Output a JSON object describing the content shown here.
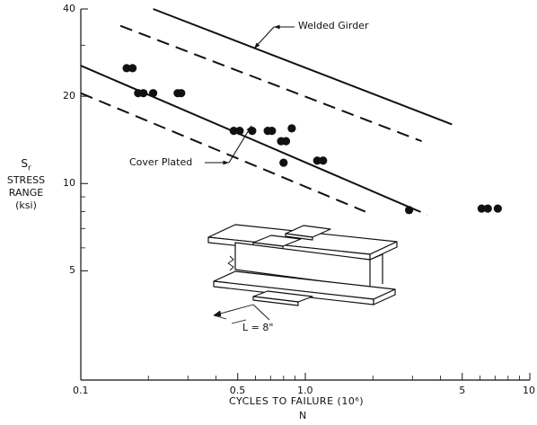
{
  "chart_data": {
    "type": "scatter",
    "xscale": "log",
    "yscale": "log",
    "xlim": [
      0.1,
      10
    ],
    "ylim": [
      2.1,
      40
    ],
    "x_ticks": [
      {
        "v": 0.1,
        "label": "0.1"
      },
      {
        "v": 0.5,
        "label": "0.5"
      },
      {
        "v": 1.0,
        "label": "1.0"
      },
      {
        "v": 5,
        "label": "5"
      },
      {
        "v": 10,
        "label": "10"
      }
    ],
    "x_minor_ticks": [
      0.2,
      0.3,
      0.4,
      0.6,
      0.7,
      0.8,
      0.9,
      2,
      3,
      4,
      6,
      7,
      8,
      9
    ],
    "y_ticks": [
      {
        "v": 5,
        "label": "5"
      },
      {
        "v": 10,
        "label": "10"
      },
      {
        "v": 20,
        "label": "20"
      },
      {
        "v": 40,
        "label": "40"
      }
    ],
    "y_minor_ticks": [
      6,
      7,
      8,
      9,
      30
    ],
    "xlabel": "CYCLES TO FAILURE (10⁶)",
    "xlabel2": "N",
    "ylabel_symbol": "Sr",
    "ylabel_lines": [
      "STRESS",
      "RANGE",
      "(ksi)"
    ],
    "grid": false,
    "series": [
      {
        "name": "",
        "marker": "filled-circle",
        "points": [
          [
            0.16,
            25
          ],
          [
            0.17,
            25
          ],
          [
            0.18,
            20.5
          ],
          [
            0.19,
            20.5
          ],
          [
            0.21,
            20.5
          ],
          [
            0.27,
            20.5
          ],
          [
            0.28,
            20.5
          ],
          [
            0.48,
            15.2
          ],
          [
            0.51,
            15.2
          ],
          [
            0.58,
            15.2
          ],
          [
            0.68,
            15.2
          ],
          [
            0.71,
            15.2
          ],
          [
            0.78,
            14.0
          ],
          [
            0.82,
            14.0
          ],
          [
            0.87,
            15.5
          ],
          [
            0.8,
            11.8
          ],
          [
            1.13,
            12.0
          ],
          [
            1.2,
            12.0
          ],
          [
            2.9,
            8.1
          ],
          [
            6.1,
            8.2
          ],
          [
            6.5,
            8.2
          ],
          [
            7.2,
            8.2
          ]
        ]
      }
    ],
    "lines": [
      {
        "category": "Welded Girder",
        "style": "solid",
        "from": [
          0.21,
          40
        ],
        "to": [
          4.5,
          16
        ]
      },
      {
        "category": "Welded Girder",
        "style": "dashed",
        "from": [
          0.15,
          35
        ],
        "to": [
          3.3,
          14
        ]
      },
      {
        "category": "Cover Plated",
        "style": "solid",
        "from": [
          0.1,
          25.5
        ],
        "to": [
          2.9,
          8.3
        ]
      },
      {
        "category": "Cover Plated",
        "style": "dashed",
        "from": [
          0.1,
          20.5
        ],
        "to": [
          1.85,
          8.0
        ]
      },
      {
        "category": "Cover Plated",
        "style": "dashed",
        "from": [
          2.9,
          8.3
        ],
        "to": [
          3.5,
          7.8
        ]
      }
    ],
    "annotations": [
      {
        "id": "welded",
        "text": "Welded Girder"
      },
      {
        "id": "cover",
        "text": "Cover Plated"
      },
      {
        "id": "length",
        "text": "L = 8\""
      }
    ]
  }
}
